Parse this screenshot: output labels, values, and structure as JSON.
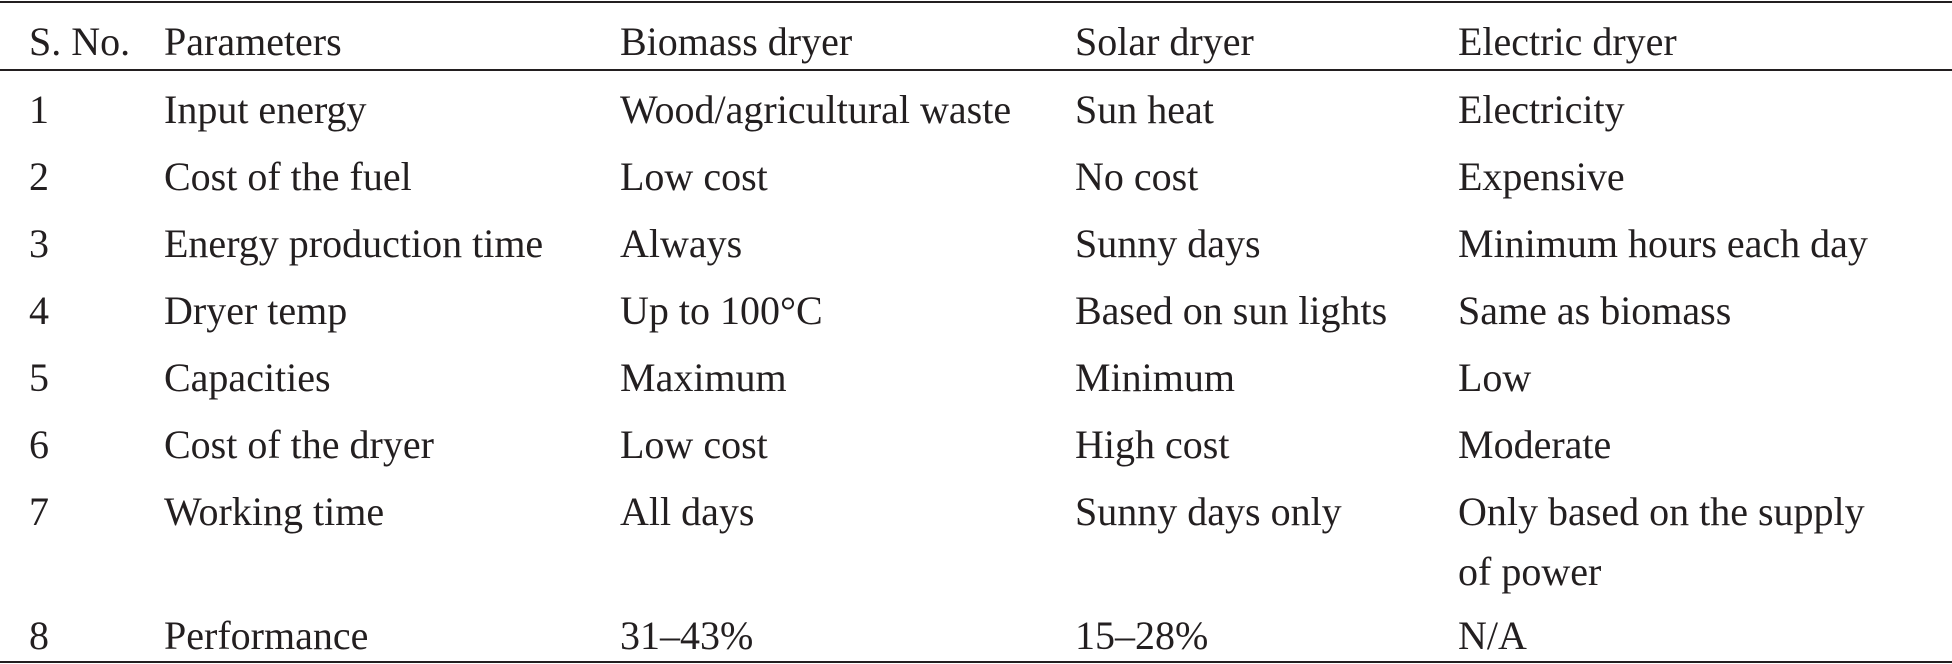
{
  "table": {
    "headers": [
      "S. No.",
      "Parameters",
      "Biomass dryer",
      "Solar dryer",
      "Electric dryer"
    ],
    "rows": [
      [
        "1",
        "Input energy",
        "Wood/agricultural waste",
        "Sun heat",
        "Electricity"
      ],
      [
        "2",
        "Cost of the fuel",
        "Low cost",
        "No cost",
        "Expensive"
      ],
      [
        "3",
        "Energy production time",
        "Always",
        "Sunny days",
        "Minimum hours each day"
      ],
      [
        "4",
        "Dryer temp",
        "Up to 100°C",
        "Based on sun lights",
        "Same as biomass"
      ],
      [
        "5",
        "Capacities",
        "Maximum",
        "Minimum",
        "Low"
      ],
      [
        "6",
        "Cost of the dryer",
        "Low cost",
        "High cost",
        "Moderate"
      ],
      [
        "7",
        "Working time",
        "All days",
        "Sunny days only",
        "Only based on the supply of power"
      ],
      [
        "8",
        "Performance",
        "31–43%",
        "15–28%",
        "N/A"
      ]
    ],
    "row7_electric_wrapped": [
      "Only based on the supply",
      "of power"
    ]
  }
}
